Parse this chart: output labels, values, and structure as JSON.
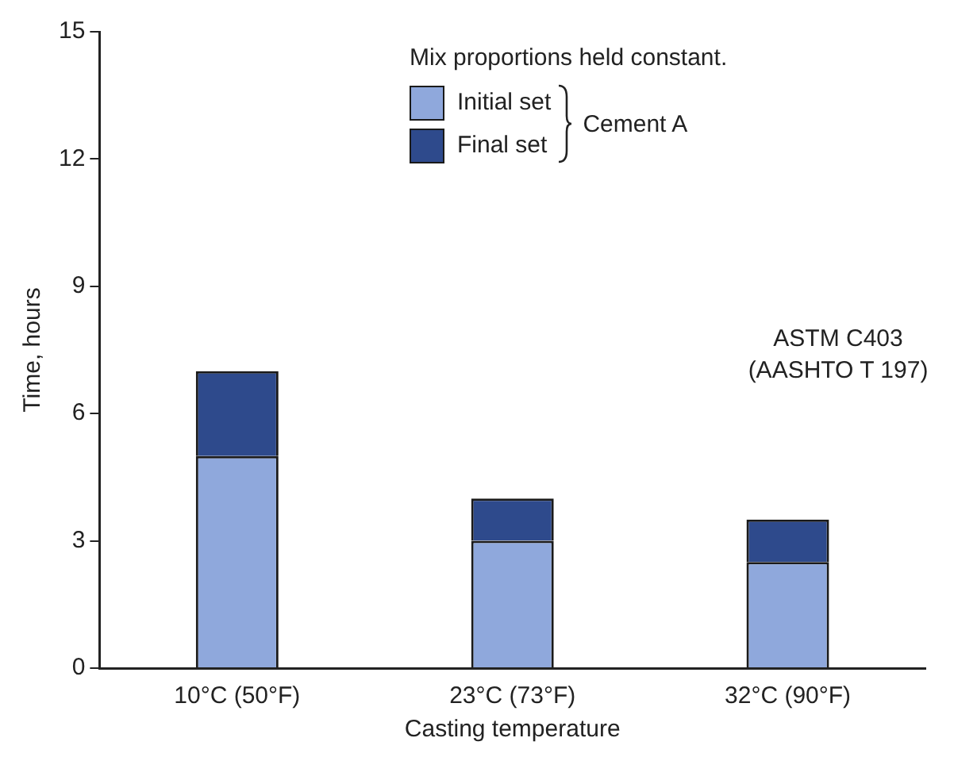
{
  "chart_data": {
    "type": "bar",
    "xlabel": "Casting temperature",
    "ylabel": "Time, hours",
    "categories": [
      "10°C (50°F)",
      "23°C (73°F)",
      "32°C (90°F)"
    ],
    "stacked": true,
    "legend": "top right",
    "legend_title": "Mix proportions held constant.",
    "series": [
      {
        "name": "Initial set",
        "color": "#8fa8dc",
        "values": [
          5,
          3,
          2.5
        ]
      },
      {
        "name": "Final set",
        "color": "#2e4a8c",
        "values": [
          2,
          1,
          1
        ]
      }
    ],
    "ylim": [
      0,
      15
    ],
    "yticks": [
      0,
      3,
      6,
      9,
      12,
      15
    ],
    "grid": false,
    "annotations": [
      "Cement A",
      "ASTM C403\n(AASHTO T 197)"
    ]
  }
}
